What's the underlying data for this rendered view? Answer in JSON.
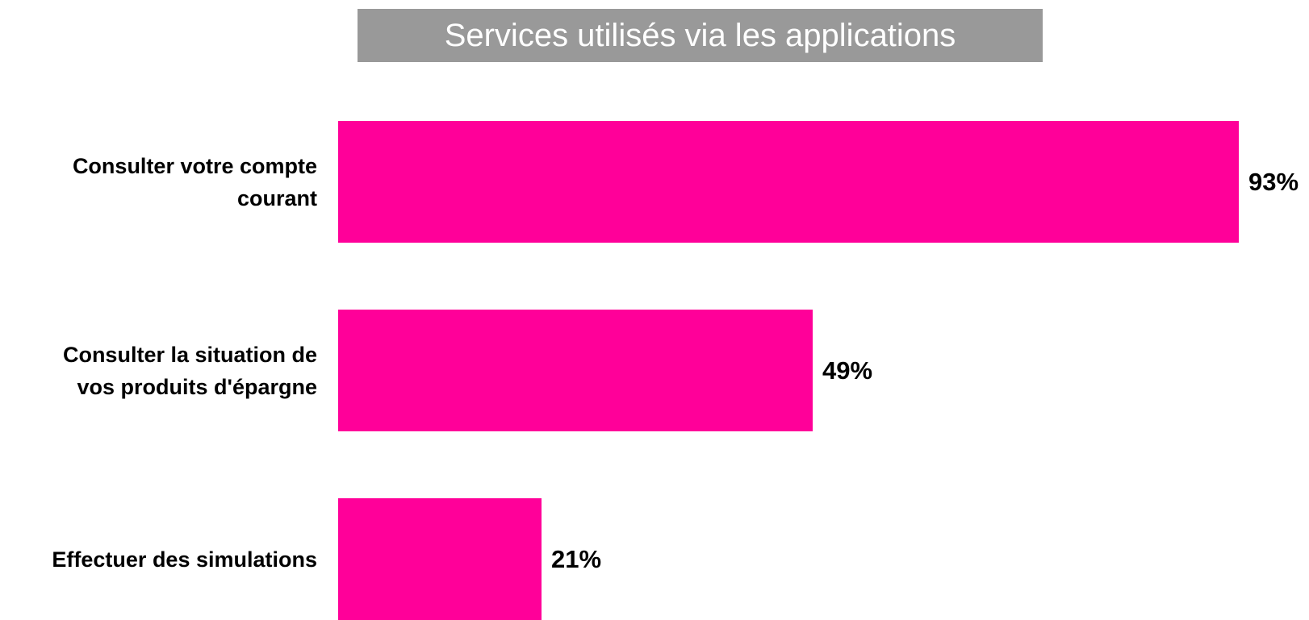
{
  "chart_data": {
    "type": "bar",
    "orientation": "horizontal",
    "title": "Services utilisés via les applications",
    "categories": [
      "Consulter votre compte\ncourant",
      "Consulter la situation de\nvos produits d'épargne",
      "Effectuer des simulations"
    ],
    "values": [
      93,
      49,
      21
    ],
    "value_labels": [
      "93%",
      "49%",
      "21%"
    ],
    "color": "#ff0099"
  }
}
